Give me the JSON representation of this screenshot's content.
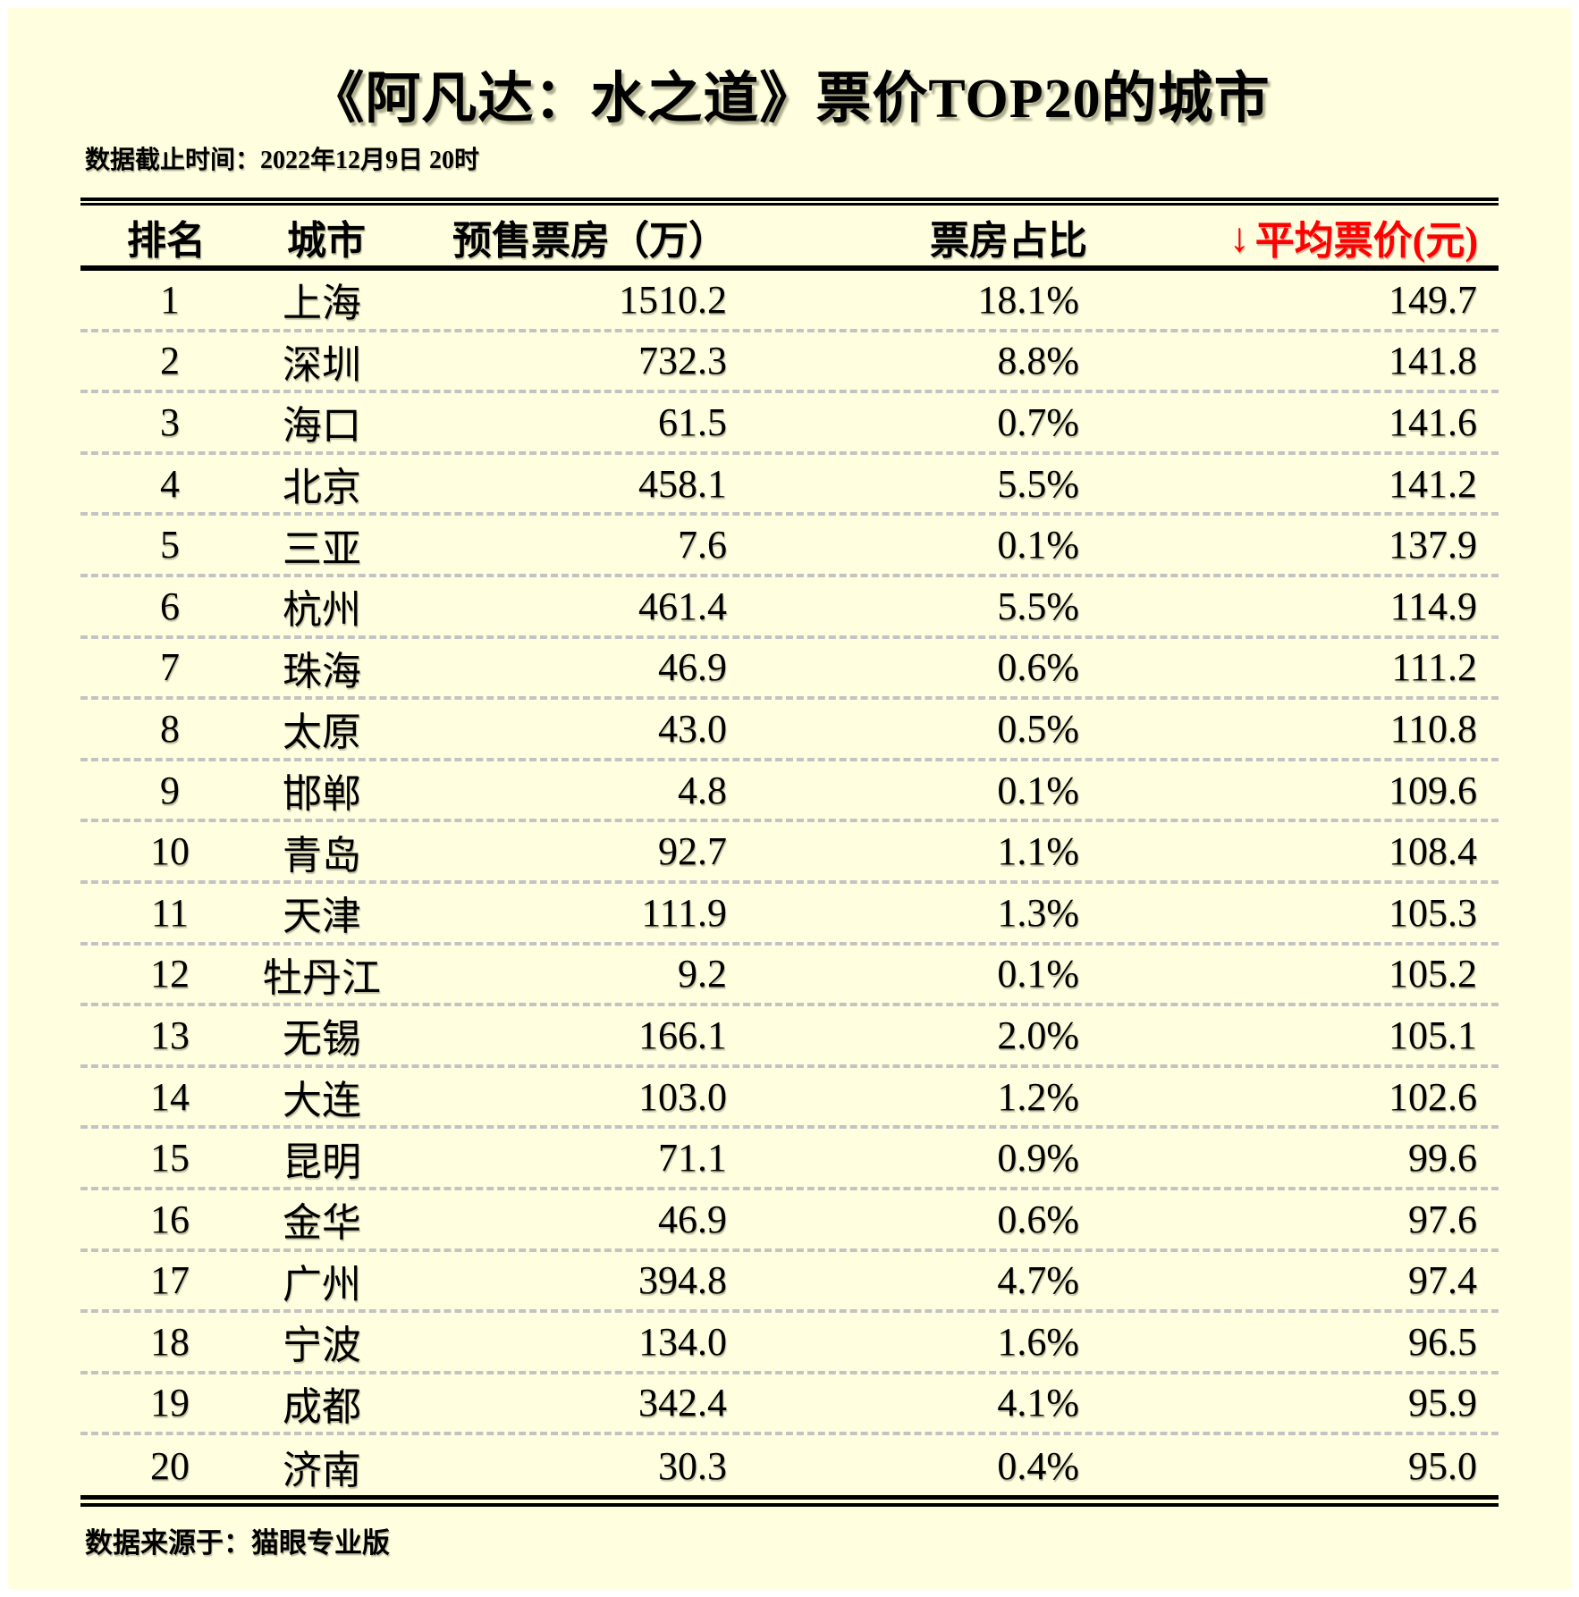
{
  "page": {
    "background_color": "#FFFFE0",
    "accent_red": "#FF0000",
    "title": "《阿凡达：水之道》票价TOP20的城市",
    "subtitle": "数据截止时间：2022年12月9日 20时",
    "source": "数据来源于：猫眼专业版"
  },
  "table": {
    "headers": {
      "rank": "排名",
      "city": "城市",
      "presale": "预售票房（万）",
      "share": "票房占比",
      "sort_arrow": "↓",
      "price": "平均票价(元)"
    }
  },
  "chart_data": {
    "type": "table",
    "title": "《阿凡达：水之道》票价TOP20的城市",
    "subtitle": "数据截止时间：2022年12月9日 20时",
    "source": "数据来源于：猫眼专业版",
    "columns": [
      "排名",
      "城市",
      "预售票房（万）",
      "票房占比",
      "平均票价(元)"
    ],
    "sort": "平均票价(元) descending",
    "rows": [
      {
        "rank": "1",
        "city": "上海",
        "presale": "1510.2",
        "share": "18.1%",
        "price": "149.7"
      },
      {
        "rank": "2",
        "city": "深圳",
        "presale": "732.3",
        "share": "8.8%",
        "price": "141.8"
      },
      {
        "rank": "3",
        "city": "海口",
        "presale": "61.5",
        "share": "0.7%",
        "price": "141.6"
      },
      {
        "rank": "4",
        "city": "北京",
        "presale": "458.1",
        "share": "5.5%",
        "price": "141.2"
      },
      {
        "rank": "5",
        "city": "三亚",
        "presale": "7.6",
        "share": "0.1%",
        "price": "137.9"
      },
      {
        "rank": "6",
        "city": "杭州",
        "presale": "461.4",
        "share": "5.5%",
        "price": "114.9"
      },
      {
        "rank": "7",
        "city": "珠海",
        "presale": "46.9",
        "share": "0.6%",
        "price": "111.2"
      },
      {
        "rank": "8",
        "city": "太原",
        "presale": "43.0",
        "share": "0.5%",
        "price": "110.8"
      },
      {
        "rank": "9",
        "city": "邯郸",
        "presale": "4.8",
        "share": "0.1%",
        "price": "109.6"
      },
      {
        "rank": "10",
        "city": "青岛",
        "presale": "92.7",
        "share": "1.1%",
        "price": "108.4"
      },
      {
        "rank": "11",
        "city": "天津",
        "presale": "111.9",
        "share": "1.3%",
        "price": "105.3"
      },
      {
        "rank": "12",
        "city": "牡丹江",
        "presale": "9.2",
        "share": "0.1%",
        "price": "105.2"
      },
      {
        "rank": "13",
        "city": "无锡",
        "presale": "166.1",
        "share": "2.0%",
        "price": "105.1"
      },
      {
        "rank": "14",
        "city": "大连",
        "presale": "103.0",
        "share": "1.2%",
        "price": "102.6"
      },
      {
        "rank": "15",
        "city": "昆明",
        "presale": "71.1",
        "share": "0.9%",
        "price": "99.6"
      },
      {
        "rank": "16",
        "city": "金华",
        "presale": "46.9",
        "share": "0.6%",
        "price": "97.6"
      },
      {
        "rank": "17",
        "city": "广州",
        "presale": "394.8",
        "share": "4.7%",
        "price": "97.4"
      },
      {
        "rank": "18",
        "city": "宁波",
        "presale": "134.0",
        "share": "1.6%",
        "price": "96.5"
      },
      {
        "rank": "19",
        "city": "成都",
        "presale": "342.4",
        "share": "4.1%",
        "price": "95.9"
      },
      {
        "rank": "20",
        "city": "济南",
        "presale": "30.3",
        "share": "0.4%",
        "price": "95.0"
      }
    ]
  }
}
